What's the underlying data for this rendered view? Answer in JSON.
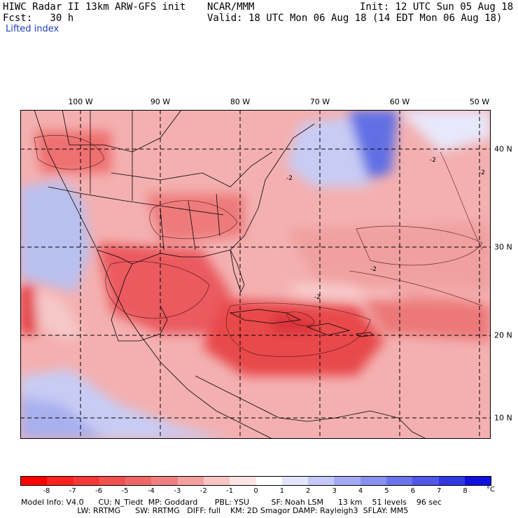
{
  "header": {
    "title": "HIWC Radar II 13km ARW-GFS init",
    "center": "NCAR/MMM",
    "init": "Init: 12 UTC Sun 05 Aug 18",
    "fcst": "Fcst:   30 h",
    "valid": "Valid: 18 UTC Mon 06 Aug 18 (14 EDT Mon 06 Aug 18)",
    "field": "Lifted index"
  },
  "map": {
    "lon_labels": [
      "100 W",
      "90 W",
      "80 W",
      "70 W",
      "60 W",
      "50 W"
    ],
    "lat_labels": [
      "40 N",
      "30 N",
      "20 N",
      "10 N"
    ],
    "contour_labels": [
      "-2",
      "-2",
      "-2",
      "-2",
      "-2"
    ],
    "colors": {
      "strong_neg": "#e8323a",
      "neg": "#f07a7a",
      "weak_neg": "#f8c0c0",
      "neutral": "#ffffff",
      "pos": "#aab4f0",
      "strong_pos": "#3c50e0"
    }
  },
  "colorbar": {
    "labels": [
      "-8",
      "-7",
      "-6",
      "-5",
      "-4",
      "-3",
      "-2",
      "-1",
      "0",
      "1",
      "2",
      "3",
      "4",
      "5",
      "6",
      "7",
      "8"
    ],
    "unit": "°C",
    "colors": [
      "#ff0000",
      "#ff2020",
      "#f83838",
      "#f05050",
      "#ee6868",
      "#f08080",
      "#f4a0a0",
      "#f8c4c4",
      "#fce4e4",
      "#ffffff",
      "#e4e4fc",
      "#c4c8f8",
      "#a4aaf4",
      "#8890f0",
      "#6c74ec",
      "#5058e8",
      "#3038e4",
      "#1010e0"
    ]
  },
  "info": {
    "line1": "Model Info: V4.0      CU: N_Tiedt  MP: Goddard       PBL: YSU         SF: Noah LSM      13 km    51 levels    96 sec",
    "line2": "                       LW: RRTMG      SW: RRTMG   DIFF: full    KM: 2D Smagor DAMP: Rayleigh3  SFLAY: MM5"
  }
}
